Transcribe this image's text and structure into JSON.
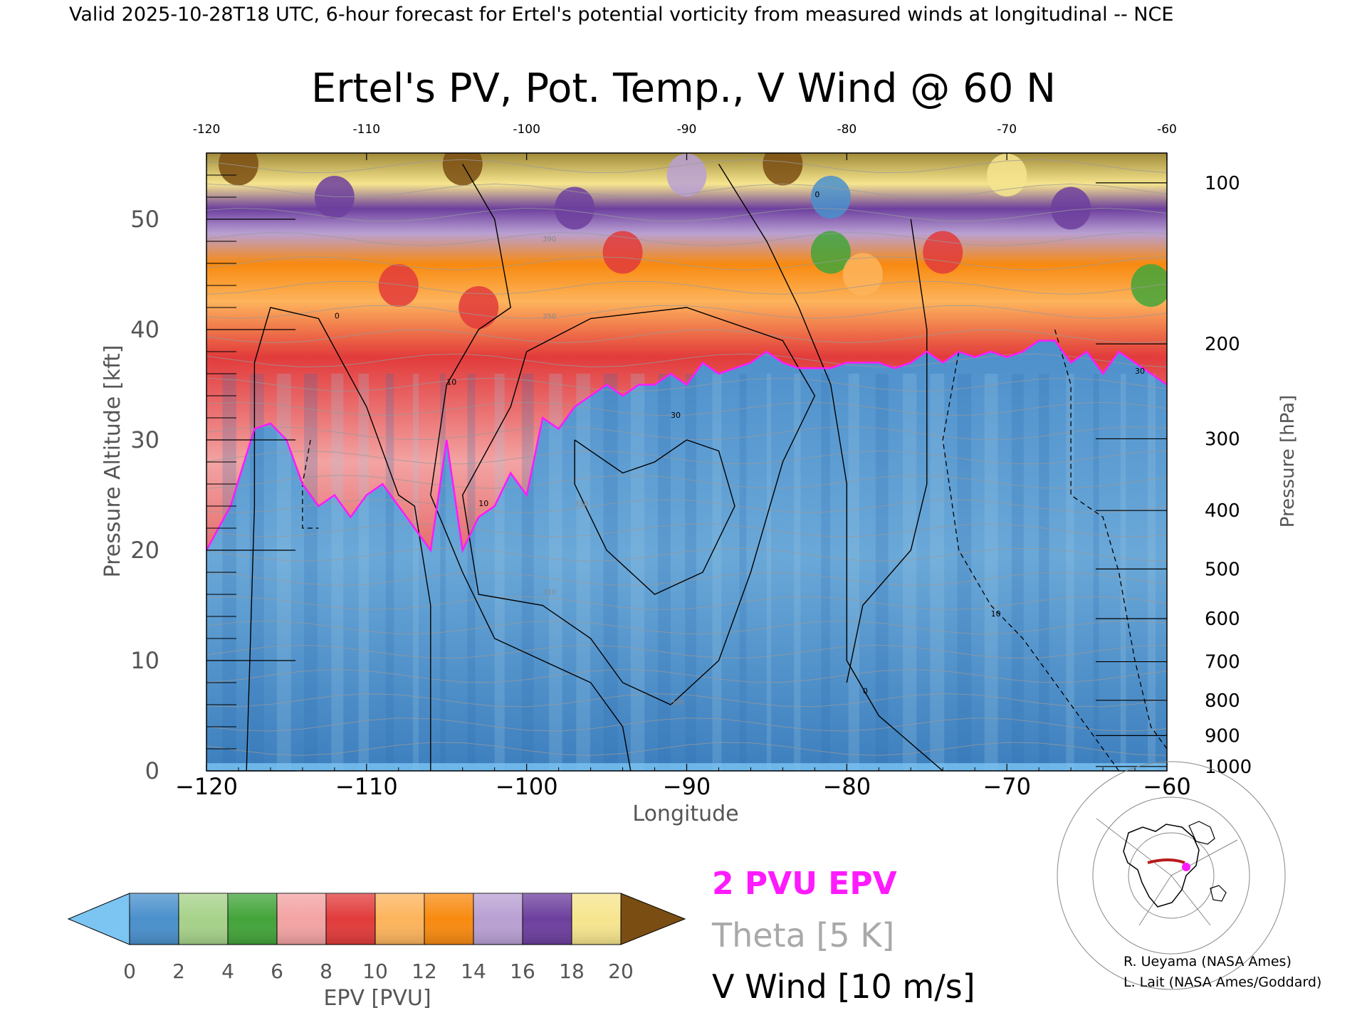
{
  "header": {
    "valid_line": "Valid 2025-10-28T18 UTC, 6-hour forecast for Ertel's potential vorticity from measured winds at longitudinal -- NCE"
  },
  "chart_data": {
    "type": "heatmap",
    "title": "Ertel's PV, Pot. Temp., V Wind @ 60 N",
    "xlabel": "Longitude",
    "ylabel": "Pressure Altitude [kft]",
    "y2label": "Pressure [hPa]",
    "xlim": [
      -120,
      -60
    ],
    "ylim": [
      0,
      56
    ],
    "x_ticks": [
      -120,
      -110,
      -100,
      -90,
      -80,
      -70,
      -60
    ],
    "x_tick_labels": [
      "−120",
      "−110",
      "−100",
      "−90",
      "−80",
      "−70",
      "−60"
    ],
    "top_tick_labels": [
      "-120",
      "-110",
      "-100",
      "-90",
      "-80",
      "-70",
      "-60"
    ],
    "y_ticks": [
      0,
      10,
      20,
      30,
      40,
      50
    ],
    "y_tick_labels": [
      "0",
      "10",
      "20",
      "30",
      "40",
      "50"
    ],
    "pressure_ticks": [
      {
        "hpa": 1000,
        "kft": 0.4,
        "label": "1000"
      },
      {
        "hpa": 900,
        "kft": 3.2,
        "label": "900"
      },
      {
        "hpa": 800,
        "kft": 6.4,
        "label": "800"
      },
      {
        "hpa": 700,
        "kft": 9.9,
        "label": "700"
      },
      {
        "hpa": 600,
        "kft": 13.8,
        "label": "600"
      },
      {
        "hpa": 500,
        "kft": 18.3,
        "label": "500"
      },
      {
        "hpa": 400,
        "kft": 23.6,
        "label": "400"
      },
      {
        "hpa": 300,
        "kft": 30.1,
        "label": "300"
      },
      {
        "hpa": 200,
        "kft": 38.7,
        "label": "200"
      },
      {
        "hpa": 100,
        "kft": 53.3,
        "label": "100"
      }
    ],
    "tropopause_2pvu_kft": {
      "lon": [
        -120,
        -118.5,
        -117,
        -116,
        -115,
        -114,
        -113,
        -112,
        -111,
        -110,
        -109,
        -108,
        -107,
        -106,
        -105,
        -104,
        -103,
        -102,
        -101,
        -100,
        -99,
        -98,
        -97,
        -96,
        -95,
        -94,
        -93,
        -92,
        -91,
        -90,
        -89,
        -88,
        -87,
        -86,
        -85,
        -84,
        -83,
        -82,
        -81,
        -80,
        -79,
        -78,
        -77,
        -76,
        -75,
        -74,
        -73,
        -72,
        -71,
        -70,
        -69,
        -68,
        -67,
        -66,
        -65,
        -64,
        -63,
        -62,
        -61,
        -60
      ],
      "kft": [
        20,
        24,
        31,
        31.5,
        30,
        26,
        24,
        25,
        23,
        25,
        26,
        24,
        22,
        20,
        30,
        20,
        23,
        24,
        27,
        25,
        32,
        31,
        33,
        34,
        35,
        34,
        35,
        35,
        36,
        35,
        37,
        36,
        36.5,
        37,
        38,
        37,
        36.5,
        36.5,
        36.5,
        37,
        37,
        37,
        36.5,
        37,
        38,
        37,
        38,
        37.5,
        38,
        37.5,
        38,
        39,
        39,
        37,
        38,
        36,
        38,
        37,
        36,
        35
      ]
    },
    "contour_labels_wind": [
      "0",
      "10",
      "10",
      "0",
      "30",
      "0",
      "10",
      "30"
    ],
    "theta_label_samples": [
      "390",
      "350",
      "330",
      "310",
      "300"
    ],
    "colorbar": {
      "label": "EPV [PVU]",
      "min": 0,
      "max": 20,
      "tick_values": [
        0,
        2,
        4,
        6,
        8,
        10,
        12,
        14,
        16,
        18,
        20
      ],
      "tick_labels": [
        "0",
        "2",
        "4",
        "6",
        "8",
        "10",
        "12",
        "14",
        "16",
        "18",
        "20"
      ],
      "bands": [
        {
          "from": 0,
          "to": 2,
          "color": "#4a90cc"
        },
        {
          "from": 2,
          "to": 4,
          "color": "#a6d28a"
        },
        {
          "from": 4,
          "to": 6,
          "color": "#43a43a"
        },
        {
          "from": 6,
          "to": 8,
          "color": "#f3a3a3"
        },
        {
          "from": 8,
          "to": 10,
          "color": "#e23b3b"
        },
        {
          "from": 10,
          "to": 12,
          "color": "#fdb45c"
        },
        {
          "from": 12,
          "to": 14,
          "color": "#f88a10"
        },
        {
          "from": 14,
          "to": 16,
          "color": "#b9a0d3"
        },
        {
          "from": 16,
          "to": 18,
          "color": "#6d3f9e"
        },
        {
          "from": 18,
          "to": 20,
          "color": "#f6e58e"
        }
      ],
      "under_color": "#7cc4f2",
      "over_color": "#7a4d12"
    },
    "legend": [
      {
        "label": "2 PVU EPV",
        "color": "#ff1aff"
      },
      {
        "label": "Theta [5 K]",
        "color": "#a9a9a9"
      },
      {
        "label": "V Wind [10 m/s]",
        "color": "#000000"
      }
    ]
  },
  "credits": [
    "R. Ueyama (NASA Ames)",
    "L. Lait (NASA Ames/Goddard)"
  ],
  "colors": {
    "tropo_blue_dark": "#3f82c2",
    "tropo_blue_light": "#8ec3e6",
    "tropopause_line": "#ff1aff",
    "theta_line": "#9a9a9a",
    "map_track": "#b81c1c",
    "map_point": "#ff1aff"
  },
  "icons": {
    "inset_map": "globe-map-icon"
  }
}
